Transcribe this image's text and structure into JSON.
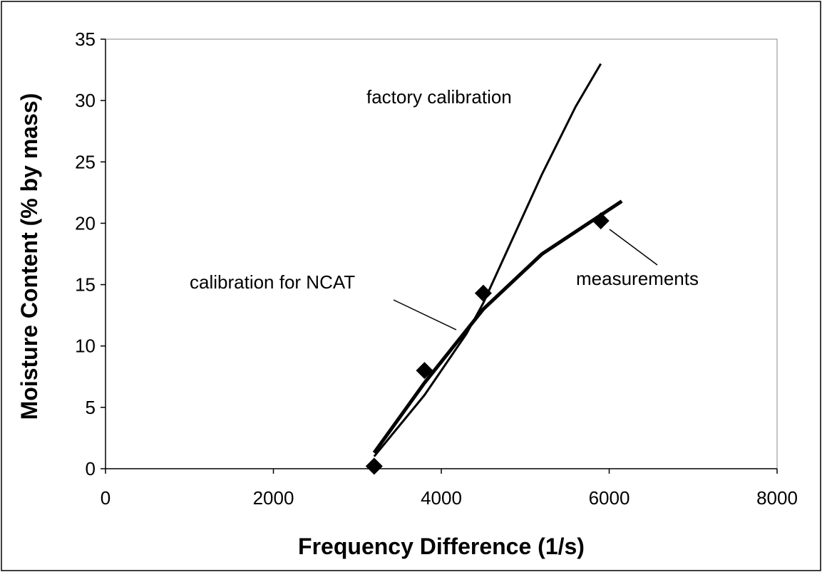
{
  "chart_data": {
    "type": "line",
    "x_label": "Frequency Difference (1/s)",
    "y_label": "Moisture Content (% by mass)",
    "xlim": [
      0,
      8000
    ],
    "xticks": [
      0,
      2000,
      4000,
      6000,
      8000
    ],
    "ylim": [
      0,
      35
    ],
    "yticks": [
      0,
      5,
      10,
      15,
      20,
      25,
      30,
      35
    ],
    "series": [
      {
        "name": "measurements",
        "color": "#000000",
        "marker": "diamond",
        "x": [
          3200,
          3800,
          4500,
          5900
        ],
        "values": [
          0.2,
          8,
          14.3,
          20.2
        ]
      },
      {
        "name": "factory calibration",
        "color": "#000000",
        "x": [
          3200,
          3800,
          4300,
          4500,
          4800,
          5200,
          5600,
          5900
        ],
        "values": [
          1,
          6,
          11,
          13.5,
          18,
          24,
          29.5,
          33
        ]
      },
      {
        "name": "calibration for NCAT",
        "color": "#000000",
        "x": [
          3200,
          3800,
          4500,
          5200,
          6150
        ],
        "values": [
          1.3,
          7,
          13,
          17.5,
          21.8
        ]
      }
    ]
  }
}
